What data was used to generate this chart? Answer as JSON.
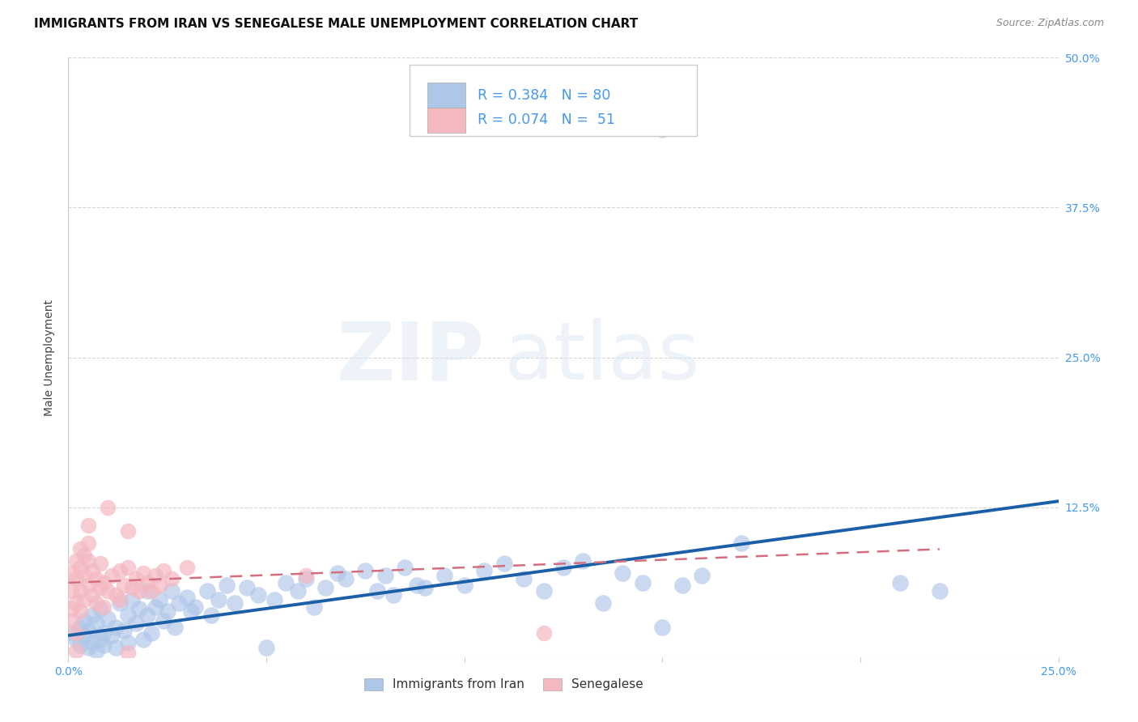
{
  "title": "IMMIGRANTS FROM IRAN VS SENEGALESE MALE UNEMPLOYMENT CORRELATION CHART",
  "source": "Source: ZipAtlas.com",
  "ylabel": "Male Unemployment",
  "xlim": [
    0.0,
    0.25
  ],
  "ylim": [
    0.0,
    0.5
  ],
  "xticks": [
    0.0,
    0.05,
    0.1,
    0.15,
    0.2,
    0.25
  ],
  "yticks": [
    0.0,
    0.125,
    0.25,
    0.375,
    0.5
  ],
  "ytick_labels": [
    "",
    "12.5%",
    "25.0%",
    "37.5%",
    "50.0%"
  ],
  "xtick_labels": [
    "0.0%",
    "",
    "",
    "",
    "",
    "25.0%"
  ],
  "legend_r_n": [
    {
      "R": "0.384",
      "N": "80"
    },
    {
      "R": "0.074",
      "N": "51"
    }
  ],
  "blue_scatter": [
    [
      0.001,
      0.02
    ],
    [
      0.002,
      0.015
    ],
    [
      0.003,
      0.01
    ],
    [
      0.003,
      0.025
    ],
    [
      0.004,
      0.018
    ],
    [
      0.004,
      0.03
    ],
    [
      0.005,
      0.022
    ],
    [
      0.005,
      0.008
    ],
    [
      0.006,
      0.035
    ],
    [
      0.006,
      0.012
    ],
    [
      0.007,
      0.028
    ],
    [
      0.007,
      0.005
    ],
    [
      0.008,
      0.04
    ],
    [
      0.008,
      0.015
    ],
    [
      0.009,
      0.02
    ],
    [
      0.009,
      0.01
    ],
    [
      0.01,
      0.032
    ],
    [
      0.011,
      0.018
    ],
    [
      0.012,
      0.025
    ],
    [
      0.012,
      0.008
    ],
    [
      0.013,
      0.045
    ],
    [
      0.014,
      0.022
    ],
    [
      0.015,
      0.035
    ],
    [
      0.015,
      0.012
    ],
    [
      0.016,
      0.048
    ],
    [
      0.017,
      0.028
    ],
    [
      0.018,
      0.04
    ],
    [
      0.019,
      0.015
    ],
    [
      0.02,
      0.055
    ],
    [
      0.02,
      0.035
    ],
    [
      0.021,
      0.02
    ],
    [
      0.022,
      0.042
    ],
    [
      0.023,
      0.048
    ],
    [
      0.024,
      0.03
    ],
    [
      0.025,
      0.038
    ],
    [
      0.026,
      0.055
    ],
    [
      0.027,
      0.025
    ],
    [
      0.028,
      0.045
    ],
    [
      0.03,
      0.05
    ],
    [
      0.031,
      0.038
    ],
    [
      0.032,
      0.042
    ],
    [
      0.035,
      0.055
    ],
    [
      0.036,
      0.035
    ],
    [
      0.038,
      0.048
    ],
    [
      0.04,
      0.06
    ],
    [
      0.042,
      0.045
    ],
    [
      0.045,
      0.058
    ],
    [
      0.048,
      0.052
    ],
    [
      0.05,
      0.008
    ],
    [
      0.052,
      0.048
    ],
    [
      0.055,
      0.062
    ],
    [
      0.058,
      0.055
    ],
    [
      0.06,
      0.065
    ],
    [
      0.062,
      0.042
    ],
    [
      0.065,
      0.058
    ],
    [
      0.068,
      0.07
    ],
    [
      0.07,
      0.065
    ],
    [
      0.075,
      0.072
    ],
    [
      0.078,
      0.055
    ],
    [
      0.08,
      0.068
    ],
    [
      0.082,
      0.052
    ],
    [
      0.085,
      0.075
    ],
    [
      0.088,
      0.06
    ],
    [
      0.09,
      0.058
    ],
    [
      0.095,
      0.068
    ],
    [
      0.1,
      0.06
    ],
    [
      0.105,
      0.072
    ],
    [
      0.11,
      0.078
    ],
    [
      0.115,
      0.065
    ],
    [
      0.12,
      0.055
    ],
    [
      0.125,
      0.075
    ],
    [
      0.13,
      0.08
    ],
    [
      0.135,
      0.045
    ],
    [
      0.14,
      0.07
    ],
    [
      0.145,
      0.062
    ],
    [
      0.15,
      0.025
    ],
    [
      0.155,
      0.06
    ],
    [
      0.16,
      0.068
    ],
    [
      0.17,
      0.095
    ],
    [
      0.15,
      0.44
    ],
    [
      0.21,
      0.062
    ],
    [
      0.22,
      0.055
    ]
  ],
  "pink_scatter": [
    [
      0.001,
      0.055
    ],
    [
      0.001,
      0.04
    ],
    [
      0.001,
      0.07
    ],
    [
      0.001,
      0.03
    ],
    [
      0.002,
      0.08
    ],
    [
      0.002,
      0.065
    ],
    [
      0.002,
      0.045
    ],
    [
      0.002,
      0.02
    ],
    [
      0.002,
      0.005
    ],
    [
      0.003,
      0.075
    ],
    [
      0.003,
      0.055
    ],
    [
      0.003,
      0.09
    ],
    [
      0.003,
      0.038
    ],
    [
      0.004,
      0.068
    ],
    [
      0.004,
      0.048
    ],
    [
      0.004,
      0.085
    ],
    [
      0.005,
      0.08
    ],
    [
      0.005,
      0.06
    ],
    [
      0.005,
      0.095
    ],
    [
      0.005,
      0.11
    ],
    [
      0.006,
      0.072
    ],
    [
      0.006,
      0.052
    ],
    [
      0.007,
      0.065
    ],
    [
      0.007,
      0.045
    ],
    [
      0.008,
      0.078
    ],
    [
      0.008,
      0.058
    ],
    [
      0.009,
      0.062
    ],
    [
      0.009,
      0.042
    ],
    [
      0.01,
      0.055
    ],
    [
      0.01,
      0.125
    ],
    [
      0.011,
      0.068
    ],
    [
      0.012,
      0.052
    ],
    [
      0.013,
      0.072
    ],
    [
      0.013,
      0.048
    ],
    [
      0.014,
      0.06
    ],
    [
      0.015,
      0.075
    ],
    [
      0.015,
      0.105
    ],
    [
      0.016,
      0.058
    ],
    [
      0.017,
      0.065
    ],
    [
      0.018,
      0.055
    ],
    [
      0.019,
      0.07
    ],
    [
      0.02,
      0.062
    ],
    [
      0.021,
      0.055
    ],
    [
      0.022,
      0.068
    ],
    [
      0.023,
      0.06
    ],
    [
      0.024,
      0.072
    ],
    [
      0.026,
      0.065
    ],
    [
      0.015,
      0.004
    ],
    [
      0.12,
      0.02
    ],
    [
      0.06,
      0.068
    ],
    [
      0.03,
      0.075
    ]
  ],
  "blue_line": {
    "x0": 0.0,
    "y0": 0.018,
    "x1": 0.25,
    "y1": 0.13
  },
  "pink_line": {
    "x0": 0.0,
    "y0": 0.062,
    "x1": 0.22,
    "y1": 0.09
  },
  "blue_line_color": "#1a5fa8",
  "pink_line_color": "#d46e7e",
  "scatter_blue_color": "#aec6e8",
  "scatter_pink_color": "#f4b8c1",
  "grid_color": "#cccccc",
  "watermark_zip": "ZIP",
  "watermark_atlas": "atlas",
  "background_color": "#ffffff",
  "title_fontsize": 11,
  "axis_label_fontsize": 10,
  "tick_fontsize": 10,
  "right_axis_color": "#4499ee",
  "source_color": "#888888",
  "ylabel_color": "#444444"
}
